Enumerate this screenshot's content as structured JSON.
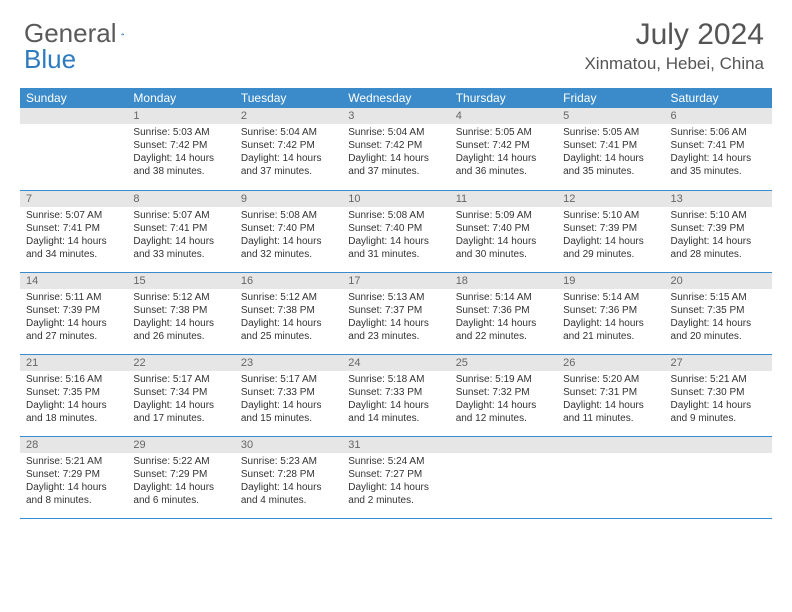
{
  "logo": {
    "text1": "General",
    "text2": "Blue"
  },
  "title": "July 2024",
  "location": "Xinmatou, Hebei, China",
  "header_bg": "#3b8bca",
  "header_fg": "#ffffff",
  "daynum_bg": "#e6e6e6",
  "row_border": "#3b8bca",
  "dayNames": [
    "Sunday",
    "Monday",
    "Tuesday",
    "Wednesday",
    "Thursday",
    "Friday",
    "Saturday"
  ],
  "weeks": [
    [
      null,
      {
        "n": "1",
        "sr": "5:03 AM",
        "ss": "7:42 PM",
        "dl": "14 hours and 38 minutes."
      },
      {
        "n": "2",
        "sr": "5:04 AM",
        "ss": "7:42 PM",
        "dl": "14 hours and 37 minutes."
      },
      {
        "n": "3",
        "sr": "5:04 AM",
        "ss": "7:42 PM",
        "dl": "14 hours and 37 minutes."
      },
      {
        "n": "4",
        "sr": "5:05 AM",
        "ss": "7:42 PM",
        "dl": "14 hours and 36 minutes."
      },
      {
        "n": "5",
        "sr": "5:05 AM",
        "ss": "7:41 PM",
        "dl": "14 hours and 35 minutes."
      },
      {
        "n": "6",
        "sr": "5:06 AM",
        "ss": "7:41 PM",
        "dl": "14 hours and 35 minutes."
      }
    ],
    [
      {
        "n": "7",
        "sr": "5:07 AM",
        "ss": "7:41 PM",
        "dl": "14 hours and 34 minutes."
      },
      {
        "n": "8",
        "sr": "5:07 AM",
        "ss": "7:41 PM",
        "dl": "14 hours and 33 minutes."
      },
      {
        "n": "9",
        "sr": "5:08 AM",
        "ss": "7:40 PM",
        "dl": "14 hours and 32 minutes."
      },
      {
        "n": "10",
        "sr": "5:08 AM",
        "ss": "7:40 PM",
        "dl": "14 hours and 31 minutes."
      },
      {
        "n": "11",
        "sr": "5:09 AM",
        "ss": "7:40 PM",
        "dl": "14 hours and 30 minutes."
      },
      {
        "n": "12",
        "sr": "5:10 AM",
        "ss": "7:39 PM",
        "dl": "14 hours and 29 minutes."
      },
      {
        "n": "13",
        "sr": "5:10 AM",
        "ss": "7:39 PM",
        "dl": "14 hours and 28 minutes."
      }
    ],
    [
      {
        "n": "14",
        "sr": "5:11 AM",
        "ss": "7:39 PM",
        "dl": "14 hours and 27 minutes."
      },
      {
        "n": "15",
        "sr": "5:12 AM",
        "ss": "7:38 PM",
        "dl": "14 hours and 26 minutes."
      },
      {
        "n": "16",
        "sr": "5:12 AM",
        "ss": "7:38 PM",
        "dl": "14 hours and 25 minutes."
      },
      {
        "n": "17",
        "sr": "5:13 AM",
        "ss": "7:37 PM",
        "dl": "14 hours and 23 minutes."
      },
      {
        "n": "18",
        "sr": "5:14 AM",
        "ss": "7:36 PM",
        "dl": "14 hours and 22 minutes."
      },
      {
        "n": "19",
        "sr": "5:14 AM",
        "ss": "7:36 PM",
        "dl": "14 hours and 21 minutes."
      },
      {
        "n": "20",
        "sr": "5:15 AM",
        "ss": "7:35 PM",
        "dl": "14 hours and 20 minutes."
      }
    ],
    [
      {
        "n": "21",
        "sr": "5:16 AM",
        "ss": "7:35 PM",
        "dl": "14 hours and 18 minutes."
      },
      {
        "n": "22",
        "sr": "5:17 AM",
        "ss": "7:34 PM",
        "dl": "14 hours and 17 minutes."
      },
      {
        "n": "23",
        "sr": "5:17 AM",
        "ss": "7:33 PM",
        "dl": "14 hours and 15 minutes."
      },
      {
        "n": "24",
        "sr": "5:18 AM",
        "ss": "7:33 PM",
        "dl": "14 hours and 14 minutes."
      },
      {
        "n": "25",
        "sr": "5:19 AM",
        "ss": "7:32 PM",
        "dl": "14 hours and 12 minutes."
      },
      {
        "n": "26",
        "sr": "5:20 AM",
        "ss": "7:31 PM",
        "dl": "14 hours and 11 minutes."
      },
      {
        "n": "27",
        "sr": "5:21 AM",
        "ss": "7:30 PM",
        "dl": "14 hours and 9 minutes."
      }
    ],
    [
      {
        "n": "28",
        "sr": "5:21 AM",
        "ss": "7:29 PM",
        "dl": "14 hours and 8 minutes."
      },
      {
        "n": "29",
        "sr": "5:22 AM",
        "ss": "7:29 PM",
        "dl": "14 hours and 6 minutes."
      },
      {
        "n": "30",
        "sr": "5:23 AM",
        "ss": "7:28 PM",
        "dl": "14 hours and 4 minutes."
      },
      {
        "n": "31",
        "sr": "5:24 AM",
        "ss": "7:27 PM",
        "dl": "14 hours and 2 minutes."
      },
      null,
      null,
      null
    ]
  ],
  "labels": {
    "sunrise": "Sunrise: ",
    "sunset": "Sunset: ",
    "daylight": "Daylight: "
  }
}
